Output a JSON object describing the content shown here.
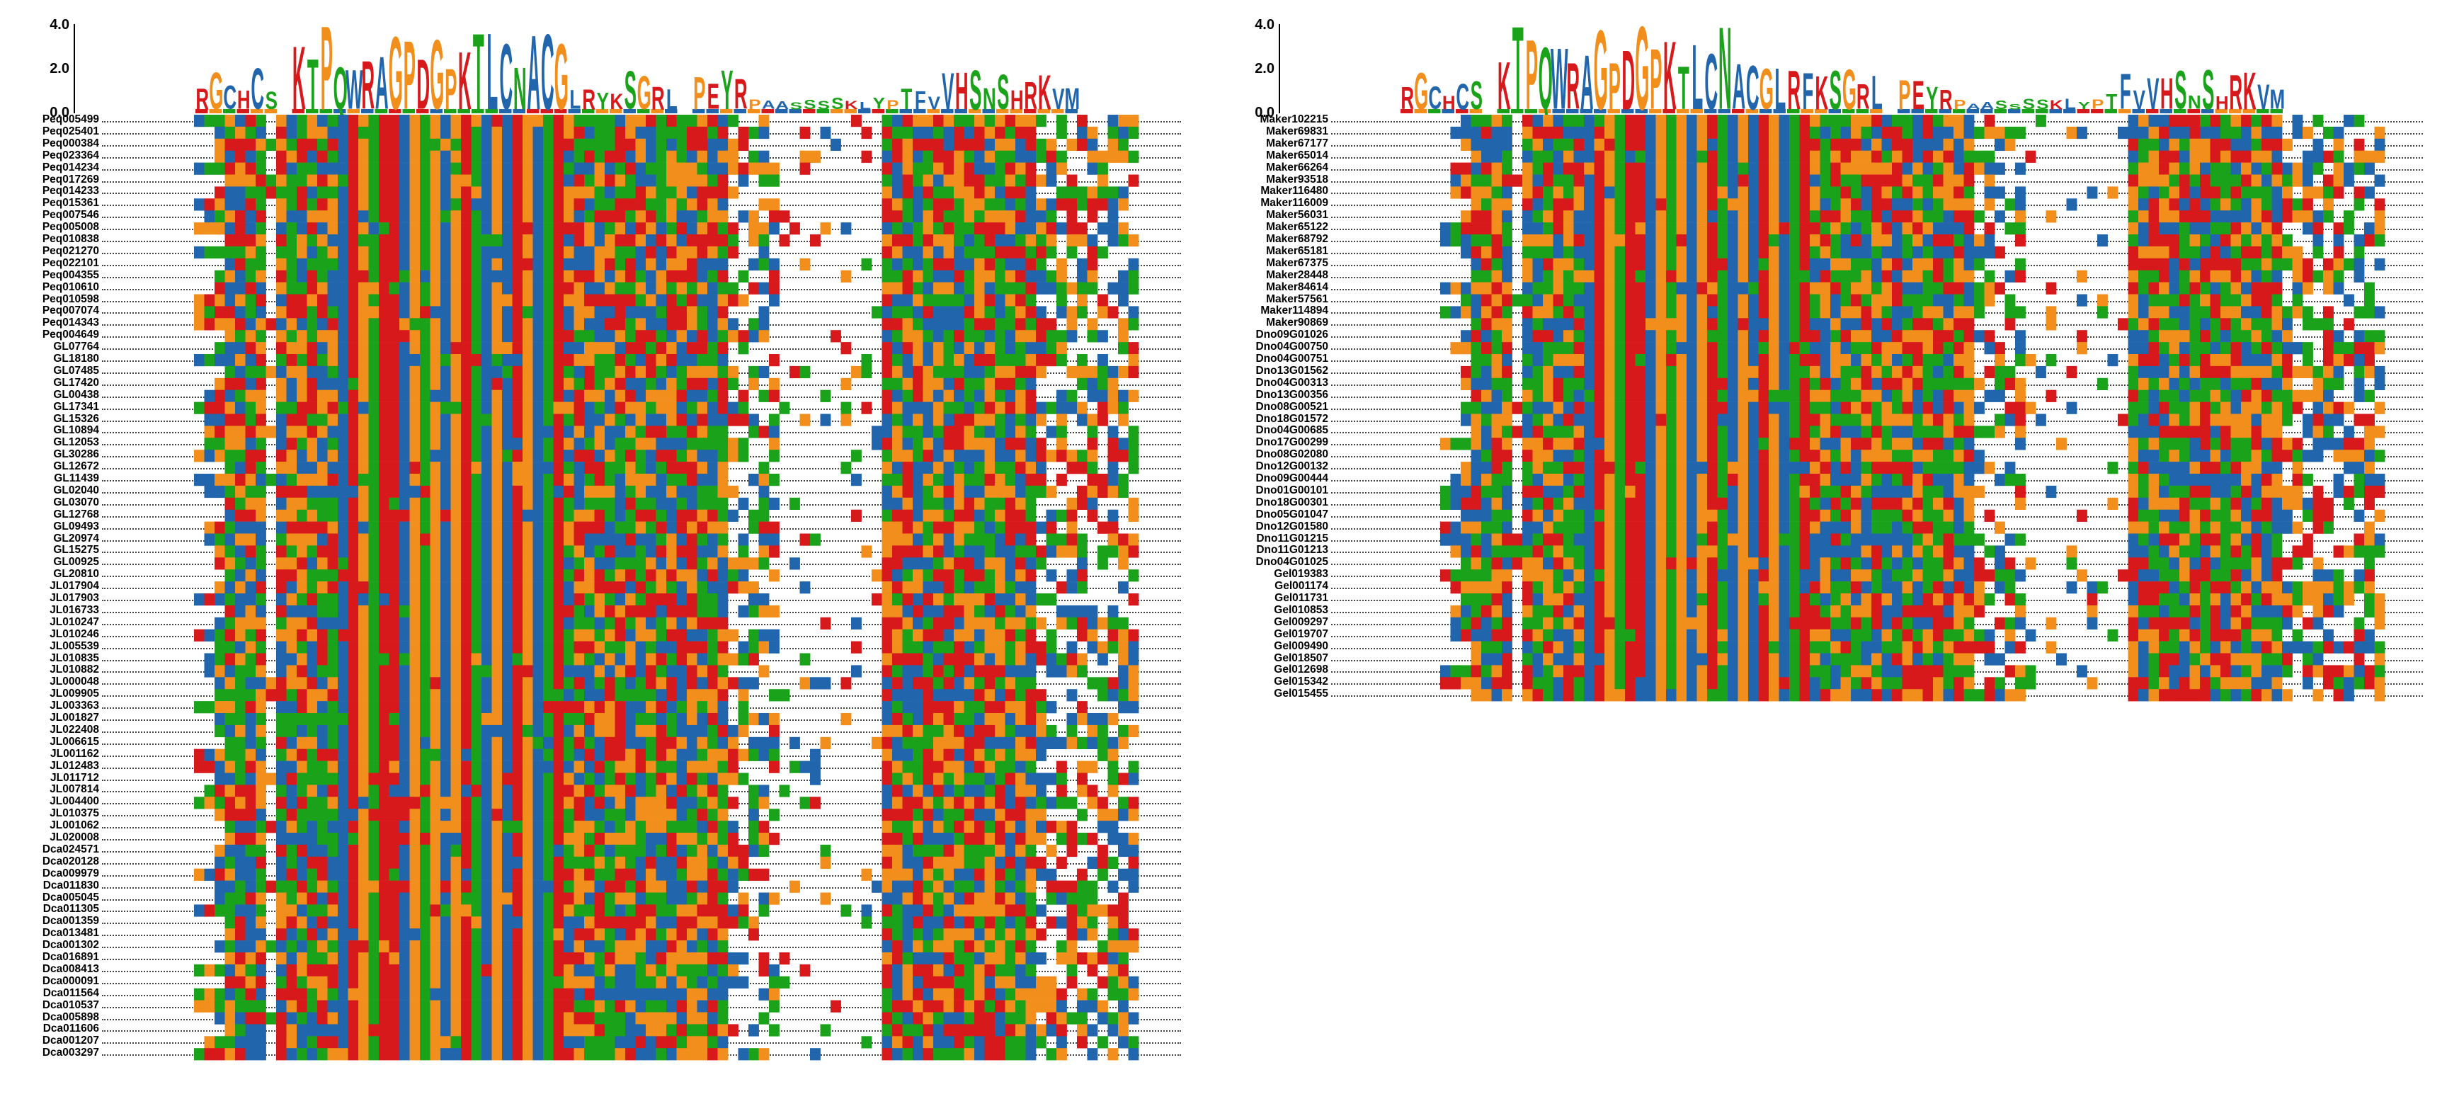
{
  "figure": {
    "logo_axis_ticks": [
      "4.0",
      "2.0",
      "0.0"
    ],
    "colors": {
      "blue": "#2166ac",
      "red": "#d7191c",
      "green": "#1aa31a",
      "orange": "#f28e1c",
      "dark": "#1f3b5a"
    },
    "consensus_left": "RGCHCS.KTPQWRAGPDGPKTLCNACGLRYKSGRL.PEYRPAASSSSKLYPTFVVHSNSHRKVM",
    "consensus_right": "RGCHCS.KTPQWRAGPDGPKTLCNACGLRFKSGRL.PEYRPAASSSSKLYPTFVVHSNSHRKVM"
  },
  "left_panel": {
    "sequences": [
      "Peq005499",
      "Peq025401",
      "Peq000384",
      "Peq023364",
      "Peq014234",
      "Peq017269",
      "Peq014233",
      "Peq015361",
      "Peq007546",
      "Peq005008",
      "Peq010838",
      "Peq021270",
      "Peq022101",
      "Peq004355",
      "Peq010610",
      "Peq010598",
      "Peq007074",
      "Peq014343",
      "Peq004649",
      "GL07764",
      "GL18180",
      "GL07485",
      "GL17420",
      "GL00438",
      "GL17341",
      "GL15326",
      "GL10894",
      "GL12053",
      "GL30286",
      "GL12672",
      "GL11439",
      "GL02040",
      "GL03070",
      "GL12768",
      "GL09493",
      "GL20974",
      "GL15275",
      "GL00925",
      "GL20810",
      "JL017904",
      "JL017903",
      "JL016733",
      "JL010247",
      "JL010246",
      "JL005539",
      "JL010835",
      "JL010882",
      "JL000048",
      "JL009905",
      "JL003363",
      "JL001827",
      "JL022408",
      "JL006615",
      "JL001162",
      "JL012483",
      "JL011712",
      "JL007814",
      "JL004400",
      "JL010375",
      "JL001062",
      "JL020008",
      "Dca024571",
      "Dca020128",
      "Dca009979",
      "Dca011830",
      "Dca005045",
      "Dca011305",
      "Dca001359",
      "Dca013481",
      "Dca001302",
      "Dca016891",
      "Dca008413",
      "Dca000091",
      "Dca011564",
      "Dca010537",
      "Dca005898",
      "Dca011606",
      "Dca001207",
      "Dca003297"
    ]
  },
  "right_panel": {
    "sequences": [
      "Maker102215",
      "Maker69831",
      "Maker67177",
      "Maker65014",
      "Maker66264",
      "Maker93518",
      "Maker116480",
      "Maker116009",
      "Maker56031",
      "Maker65122",
      "Maker68792",
      "Maker65181",
      "Maker67375",
      "Maker28448",
      "Maker84614",
      "Maker57561",
      "Maker114894",
      "Maker90869",
      "Dno09G01026",
      "Dno04G00750",
      "Dno04G00751",
      "Dno13G01562",
      "Dno04G00313",
      "Dno13G00356",
      "Dno08G00521",
      "Dno18G01572",
      "Dno04G00685",
      "Dno17G00299",
      "Dno08G02080",
      "Dno12G00132",
      "Dno09G00444",
      "Dno01G00101",
      "Dno18G00301",
      "Dno05G01047",
      "Dno12G01580",
      "Dno11G01215",
      "Dno11G01213",
      "Dno04G01025",
      "Gel019383",
      "Gel001174",
      "Gel011731",
      "Gel010853",
      "Gel009297",
      "Gel019707",
      "Gel009490",
      "Gel018507",
      "Gel012698",
      "Gel015342",
      "Gel015455"
    ]
  }
}
